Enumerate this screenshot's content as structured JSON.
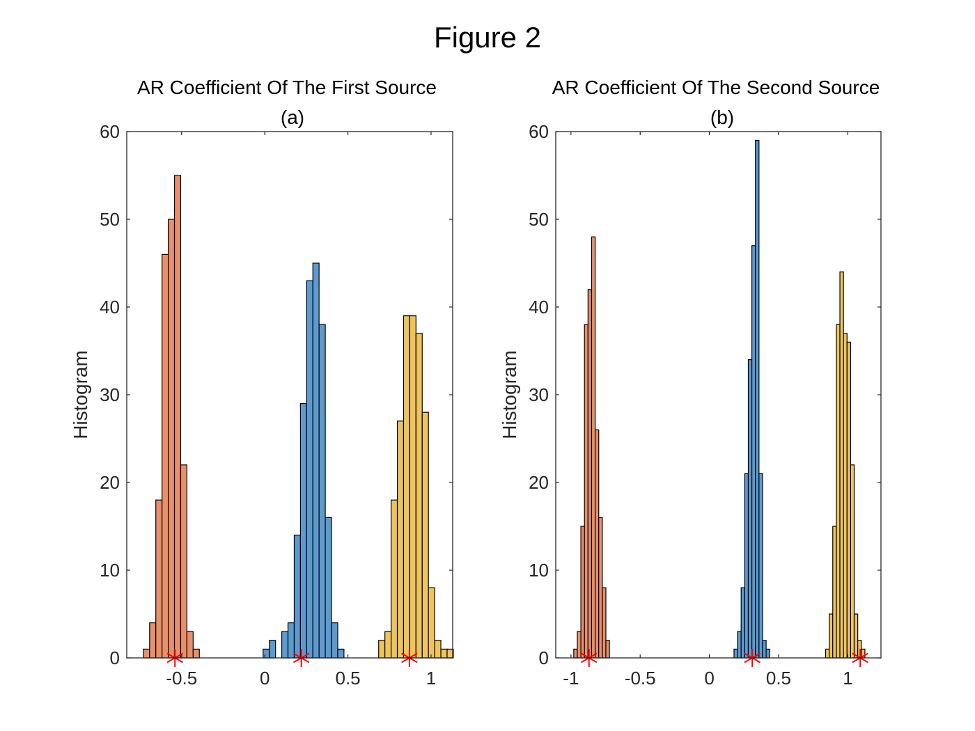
{
  "figure_title": "Figure 2",
  "chart_data": [
    {
      "type": "histogram",
      "title": "AR Coefficient Of The First Source",
      "subtitle": "(a)",
      "xlabel": "",
      "ylabel": "Histogram",
      "xlim": [
        -0.83,
        1.13
      ],
      "ylim": [
        0,
        60
      ],
      "xticks": [
        -0.5,
        0,
        0.5,
        1
      ],
      "xtick_labels": [
        "-0.5",
        "0",
        "0.5",
        "1"
      ],
      "yticks": [
        0,
        10,
        20,
        30,
        40,
        50,
        60
      ],
      "ytick_labels": [
        "0",
        "10",
        "20",
        "30",
        "40",
        "50",
        "60"
      ],
      "bin_width": 0.0374,
      "grid": false,
      "series": [
        {
          "color": "#e8906a",
          "bin_start": -0.73,
          "counts": [
            1,
            4,
            18,
            46,
            50,
            55,
            22,
            3,
            1
          ]
        },
        {
          "color": "#5b9bd0",
          "bin_start": -0.01,
          "counts": [
            1,
            2,
            0,
            3,
            4,
            14,
            29,
            43,
            45,
            38,
            16,
            4,
            1
          ]
        },
        {
          "color": "#edc45e",
          "bin_start": 0.685,
          "counts": [
            2,
            3,
            18,
            27,
            39,
            39,
            37,
            28,
            8,
            2,
            1,
            1
          ]
        }
      ],
      "true_values": [
        -0.54,
        0.22,
        0.87
      ],
      "marker_color": "#ff0000"
    },
    {
      "type": "histogram",
      "title": "AR Coefficient Of The Second Source",
      "subtitle": "(b)",
      "xlabel": "",
      "ylabel": "Histogram",
      "xlim": [
        -1.11,
        1.24
      ],
      "ylim": [
        0,
        60
      ],
      "xticks": [
        -1,
        -0.5,
        0,
        0.5,
        1
      ],
      "xtick_labels": [
        "-1",
        "-0.5",
        "0",
        "0.5",
        "1"
      ],
      "yticks": [
        0,
        10,
        20,
        30,
        40,
        50,
        60
      ],
      "ytick_labels": [
        "0",
        "10",
        "20",
        "30",
        "40",
        "50",
        "60"
      ],
      "bin_width": 0.0258,
      "grid": false,
      "series": [
        {
          "color": "#e8906a",
          "bin_start": -0.98,
          "counts": [
            1,
            3,
            15,
            38,
            42,
            48,
            26,
            16,
            8,
            2
          ]
        },
        {
          "color": "#5b9bd0",
          "bin_start": 0.178,
          "counts": [
            1,
            3,
            8,
            21,
            34,
            47,
            59,
            21,
            2,
            1
          ]
        },
        {
          "color": "#edc45e",
          "bin_start": 0.84,
          "counts": [
            1,
            5,
            15,
            38,
            44,
            37,
            36,
            22,
            5,
            2,
            1
          ]
        }
      ],
      "true_values": [
        -0.87,
        0.31,
        1.09
      ],
      "marker_color": "#ff0000"
    }
  ]
}
